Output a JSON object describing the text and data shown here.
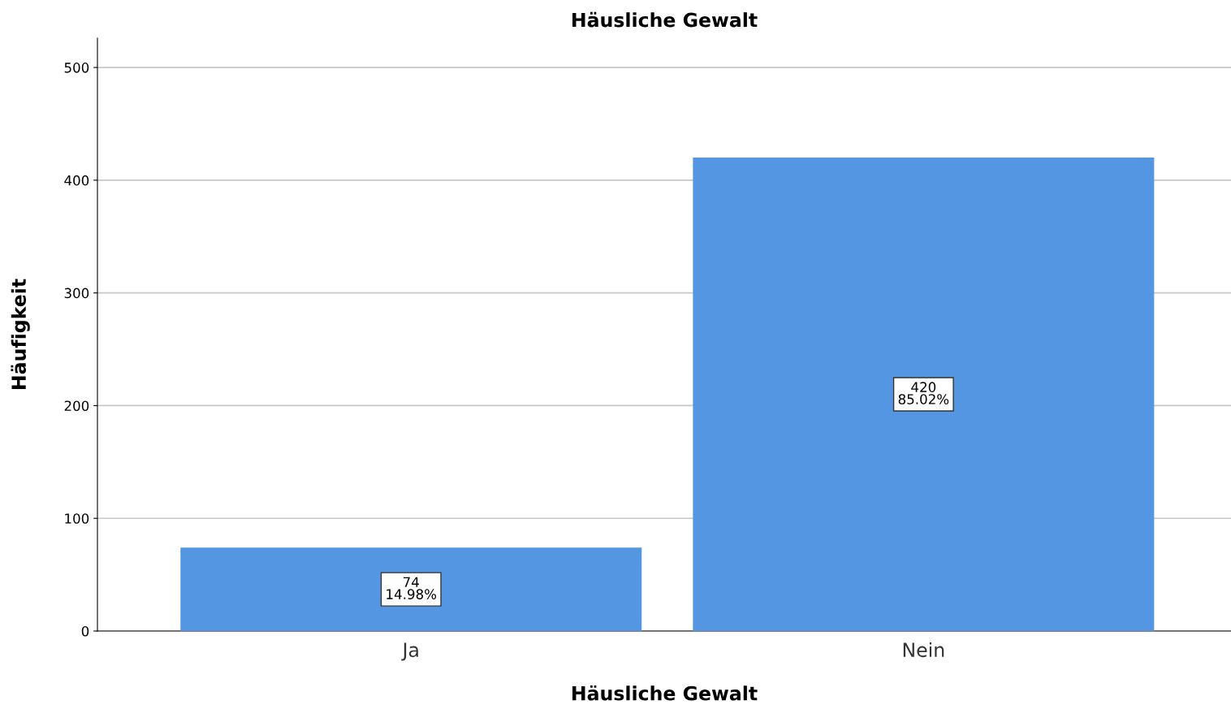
{
  "chart_data": {
    "type": "bar",
    "title": "Häusliche Gewalt",
    "xlabel": "Häusliche Gewalt",
    "ylabel": "Häufigkeit",
    "categories": [
      "Ja",
      "Nein"
    ],
    "values": [
      74,
      420
    ],
    "color": "#5596e3",
    "value_labels": [
      "74\n14.98%",
      "420\n85.02%"
    ],
    "ylim": [
      0,
      526
    ],
    "yticks": [
      0,
      100,
      200,
      300,
      400,
      500
    ],
    "grid": "y"
  }
}
